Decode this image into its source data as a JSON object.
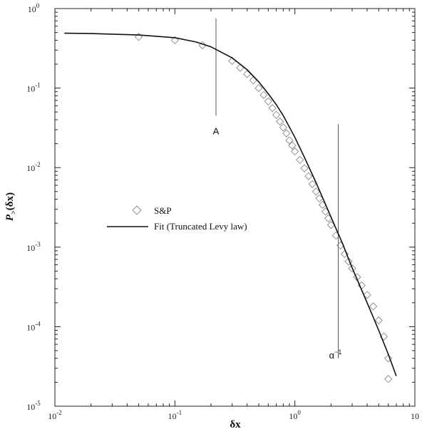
{
  "chart_data": {
    "type": "scatter",
    "x_scale": "log",
    "y_scale": "log",
    "xlim": [
      0.01,
      10
    ],
    "ylim": [
      1e-05,
      1
    ],
    "xlabel": "δx",
    "ylabel": "P>(δx)",
    "ylabel_main": "P",
    "ylabel_sub": ">",
    "ylabel_arg": "(δx)",
    "grid": false,
    "legend_position": "center-left",
    "x_ticks": [
      {
        "value": 0.01,
        "base": "10",
        "exp": "-2"
      },
      {
        "value": 0.1,
        "base": "10",
        "exp": "-1"
      },
      {
        "value": 1,
        "base": "10",
        "exp": "0"
      },
      {
        "value": 10,
        "base": "10",
        "exp": ""
      }
    ],
    "y_ticks": [
      {
        "value": 1,
        "base": "10",
        "exp": "0"
      },
      {
        "value": 0.1,
        "base": "10",
        "exp": "-1"
      },
      {
        "value": 0.01,
        "base": "10",
        "exp": "-2"
      },
      {
        "value": 0.001,
        "base": "10",
        "exp": "-3"
      },
      {
        "value": 0.0001,
        "base": "10",
        "exp": "-4"
      },
      {
        "value": 1e-05,
        "base": "10",
        "exp": "-5"
      }
    ],
    "series": [
      {
        "name": "S&P",
        "marker": "diamond-open",
        "points": [
          [
            0.05,
            0.44
          ],
          [
            0.1,
            0.4
          ],
          [
            0.17,
            0.345
          ],
          [
            0.3,
            0.22
          ],
          [
            0.35,
            0.18
          ],
          [
            0.4,
            0.15
          ],
          [
            0.45,
            0.125
          ],
          [
            0.5,
            0.1
          ],
          [
            0.55,
            0.082
          ],
          [
            0.6,
            0.068
          ],
          [
            0.65,
            0.056
          ],
          [
            0.7,
            0.046
          ],
          [
            0.75,
            0.038
          ],
          [
            0.8,
            0.032
          ],
          [
            0.85,
            0.027
          ],
          [
            0.9,
            0.022
          ],
          [
            0.95,
            0.019
          ],
          [
            1.0,
            0.016
          ],
          [
            1.1,
            0.0125
          ],
          [
            1.2,
            0.0098
          ],
          [
            1.3,
            0.0078
          ],
          [
            1.4,
            0.0062
          ],
          [
            1.5,
            0.005
          ],
          [
            1.6,
            0.0041
          ],
          [
            1.7,
            0.0034
          ],
          [
            1.8,
            0.0028
          ],
          [
            1.9,
            0.0023
          ],
          [
            2.0,
            0.0019
          ],
          [
            2.2,
            0.0014
          ],
          [
            2.4,
            0.00105
          ],
          [
            2.6,
            0.00082
          ],
          [
            2.8,
            0.00066
          ],
          [
            3.0,
            0.00054
          ],
          [
            3.3,
            0.00042
          ],
          [
            3.6,
            0.00033
          ],
          [
            4.0,
            0.00025
          ],
          [
            4.5,
            0.00018
          ],
          [
            5.0,
            0.00012
          ],
          [
            5.5,
            7.5e-05
          ],
          [
            6.0,
            4e-05
          ],
          [
            6.0,
            2.2e-05
          ]
        ]
      },
      {
        "name": "Fit (Truncated Levy law)",
        "style": "line",
        "points": [
          [
            0.012,
            0.49
          ],
          [
            0.02,
            0.485
          ],
          [
            0.05,
            0.465
          ],
          [
            0.1,
            0.43
          ],
          [
            0.15,
            0.38
          ],
          [
            0.2,
            0.33
          ],
          [
            0.3,
            0.24
          ],
          [
            0.4,
            0.17
          ],
          [
            0.5,
            0.12
          ],
          [
            0.6,
            0.085
          ],
          [
            0.7,
            0.062
          ],
          [
            0.8,
            0.045
          ],
          [
            1.0,
            0.024
          ],
          [
            1.2,
            0.0135
          ],
          [
            1.5,
            0.0065
          ],
          [
            2.0,
            0.0024
          ],
          [
            2.5,
            0.0011
          ],
          [
            3.0,
            0.00055
          ],
          [
            4.0,
            0.0002
          ],
          [
            5.0,
            9e-05
          ],
          [
            6.0,
            4.5e-05
          ],
          [
            7.0,
            2.4e-05
          ]
        ]
      }
    ],
    "annotations": [
      {
        "label": "A",
        "x": 0.22,
        "line_y": [
          0.045,
          0.75
        ]
      },
      {
        "label": "α",
        "sup": "−1",
        "x": 2.3,
        "line_y": [
          4e-05,
          0.035
        ]
      }
    ]
  }
}
